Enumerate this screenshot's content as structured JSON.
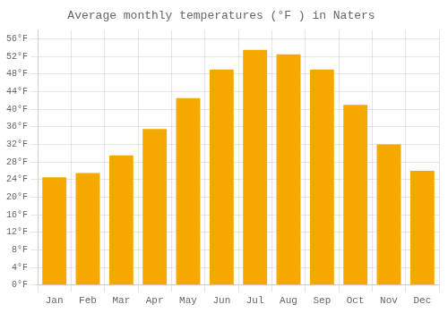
{
  "chart_data": {
    "type": "bar",
    "title": "Average monthly temperatures (°F ) in Naters",
    "categories": [
      "Jan",
      "Feb",
      "Mar",
      "Apr",
      "May",
      "Jun",
      "Jul",
      "Aug",
      "Sep",
      "Oct",
      "Nov",
      "Dec"
    ],
    "values": [
      24.5,
      25.5,
      29.5,
      35.5,
      42.5,
      49.0,
      53.5,
      52.5,
      49.0,
      41.0,
      32.0,
      26.0
    ],
    "color": "#F5A800",
    "ylim": [
      0,
      58
    ],
    "yticks": [
      {
        "value": 0,
        "label": "0°F"
      },
      {
        "value": 4,
        "label": "4°F"
      },
      {
        "value": 8,
        "label": "8°F"
      },
      {
        "value": 12,
        "label": "12°F"
      },
      {
        "value": 16,
        "label": "16°F"
      },
      {
        "value": 20,
        "label": "20°F"
      },
      {
        "value": 24,
        "label": "24°F"
      },
      {
        "value": 28,
        "label": "28°F"
      },
      {
        "value": 32,
        "label": "32°F"
      },
      {
        "value": 36,
        "label": "36°F"
      },
      {
        "value": 40,
        "label": "40°F"
      },
      {
        "value": 44,
        "label": "44°F"
      },
      {
        "value": 48,
        "label": "48°F"
      },
      {
        "value": 52,
        "label": "52°F"
      },
      {
        "value": 56,
        "label": "56°F"
      }
    ],
    "grid": true
  }
}
